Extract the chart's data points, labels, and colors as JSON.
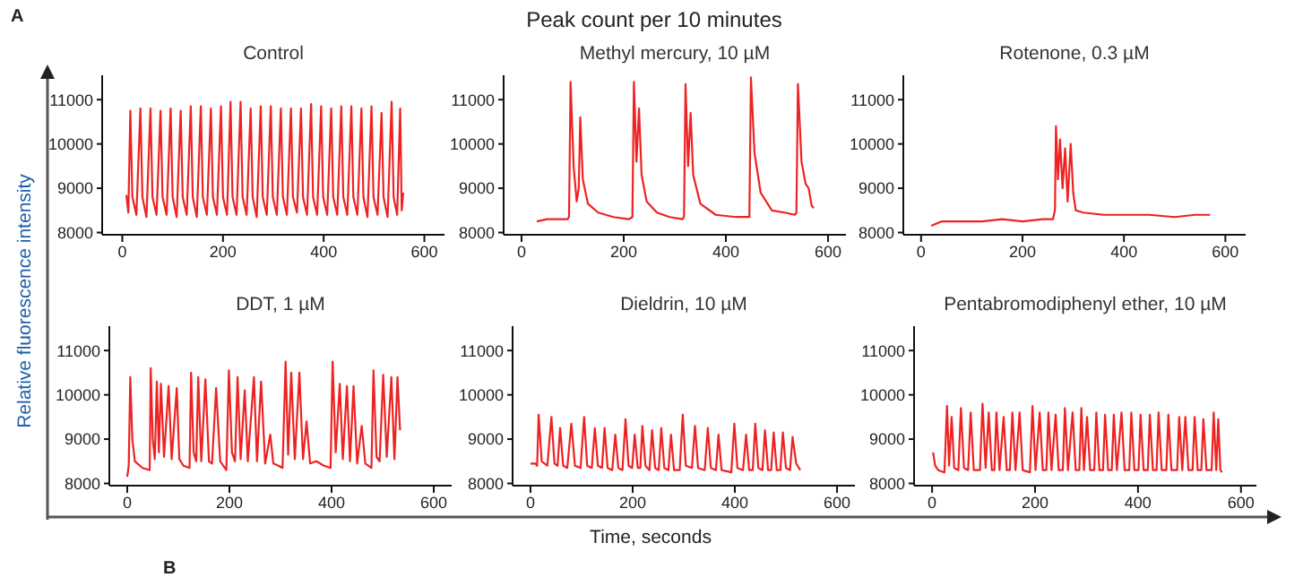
{
  "chart_data": [
    {
      "type": "line",
      "title": "Control",
      "ylabel": "Relative fluorescence intensity",
      "annotations": [
        "A",
        "Peak count per 10 minutes",
        "B"
      ],
      "color": "#ee2222",
      "xlim": [
        -40,
        640
      ],
      "ylim": [
        7950,
        11550
      ],
      "xticks": [
        0,
        200,
        400,
        600
      ],
      "yticks": [
        8000,
        9000,
        10000,
        11000
      ],
      "x": [
        8,
        12,
        16,
        20,
        28,
        36,
        40,
        48,
        56,
        60,
        68,
        76,
        80,
        88,
        96,
        100,
        108,
        116,
        120,
        128,
        136,
        140,
        148,
        156,
        160,
        168,
        176,
        180,
        188,
        196,
        200,
        208,
        215,
        219,
        227,
        235,
        239,
        247,
        255,
        259,
        267,
        275,
        279,
        287,
        295,
        299,
        307,
        315,
        319,
        327,
        335,
        339,
        347,
        355,
        359,
        367,
        375,
        379,
        387,
        395,
        399,
        407,
        415,
        419,
        427,
        435,
        439,
        447,
        455,
        459,
        467,
        475,
        479,
        487,
        495,
        499,
        507,
        515,
        519,
        527,
        535,
        539,
        546,
        552,
        555,
        558
      ],
      "values": [
        8850,
        8450,
        10750,
        8800,
        8400,
        10800,
        8800,
        8350,
        10800,
        8800,
        8400,
        10750,
        8800,
        8400,
        10800,
        8800,
        8350,
        10750,
        8800,
        8400,
        10850,
        8800,
        8350,
        10850,
        8800,
        8400,
        10800,
        8800,
        8400,
        10850,
        8800,
        8400,
        10950,
        8800,
        8400,
        10950,
        8800,
        8400,
        10800,
        8800,
        8350,
        10850,
        8800,
        8400,
        10850,
        8800,
        8400,
        10800,
        8800,
        8400,
        10800,
        8800,
        8450,
        10800,
        8800,
        8400,
        10900,
        8800,
        8400,
        10850,
        8800,
        8400,
        10800,
        8800,
        8400,
        10850,
        8800,
        8400,
        10850,
        8800,
        8400,
        10800,
        8800,
        8350,
        10850,
        8800,
        8400,
        10700,
        8800,
        8350,
        10950,
        8800,
        8400,
        10800,
        8500,
        8900
      ]
    },
    {
      "type": "line",
      "title": "Methyl mercury, 10 µM",
      "color": "#ee2222",
      "xlim": [
        -35,
        635
      ],
      "ylim": [
        7950,
        11550
      ],
      "xticks": [
        0,
        200,
        400,
        600
      ],
      "yticks": [
        8000,
        9000,
        10000,
        11000
      ],
      "x": [
        30,
        50,
        70,
        90,
        93,
        96,
        102,
        108,
        112,
        115,
        120,
        130,
        150,
        180,
        210,
        217,
        220,
        225,
        230,
        235,
        245,
        265,
        290,
        315,
        318,
        321,
        326,
        331,
        336,
        350,
        380,
        420,
        446,
        449,
        456,
        468,
        490,
        515,
        535,
        538,
        541,
        548,
        556,
        562,
        568,
        572
      ],
      "values": [
        8250,
        8300,
        8300,
        8300,
        8350,
        11400,
        9500,
        8700,
        9000,
        10600,
        9200,
        8650,
        8450,
        8350,
        8300,
        8350,
        11400,
        9600,
        10800,
        9300,
        8700,
        8450,
        8350,
        8300,
        8350,
        11350,
        9500,
        10700,
        9300,
        8650,
        8400,
        8350,
        8350,
        11500,
        9800,
        8900,
        8500,
        8450,
        8400,
        8450,
        11350,
        9600,
        9100,
        9000,
        8600,
        8550
      ]
    },
    {
      "type": "line",
      "title": "Rotenone, 0.3 µM",
      "color": "#ee2222",
      "xlim": [
        -35,
        640
      ],
      "ylim": [
        7950,
        11550
      ],
      "xticks": [
        0,
        200,
        400,
        600
      ],
      "yticks": [
        8000,
        9000,
        10000,
        11000
      ],
      "x": [
        20,
        40,
        80,
        120,
        160,
        200,
        240,
        260,
        264,
        266,
        270,
        274,
        279,
        284,
        289,
        295,
        300,
        305,
        320,
        360,
        400,
        450,
        500,
        540,
        570
      ],
      "values": [
        8150,
        8250,
        8250,
        8250,
        8300,
        8250,
        8300,
        8300,
        8500,
        10400,
        9200,
        10100,
        9000,
        9900,
        8700,
        10000,
        8900,
        8500,
        8450,
        8400,
        8400,
        8400,
        8350,
        8400,
        8400
      ]
    },
    {
      "type": "line",
      "title": "DDT, 1 µM",
      "color": "#ee2222",
      "xlim": [
        -35,
        635
      ],
      "ylim": [
        7950,
        11550
      ],
      "xticks": [
        0,
        200,
        400,
        600
      ],
      "yticks": [
        8000,
        9000,
        10000,
        11000
      ],
      "x": [
        0,
        3,
        6,
        10,
        15,
        30,
        44,
        46,
        50,
        54,
        58,
        62,
        66,
        72,
        81,
        87,
        97,
        102,
        110,
        122,
        125,
        130,
        135,
        139,
        145,
        153,
        160,
        166,
        174,
        182,
        194,
        199,
        205,
        211,
        216,
        222,
        230,
        236,
        248,
        254,
        262,
        270,
        280,
        286,
        296,
        304,
        310,
        315,
        321,
        328,
        337,
        344,
        351,
        358,
        370,
        385,
        398,
        402,
        408,
        416,
        422,
        430,
        436,
        443,
        450,
        459,
        466,
        478,
        482,
        488,
        494,
        501,
        508,
        517,
        523,
        529,
        534
      ],
      "values": [
        8150,
        8400,
        10400,
        9000,
        8500,
        8350,
        8300,
        10600,
        9000,
        8550,
        10300,
        8700,
        10250,
        8600,
        10200,
        8550,
        10150,
        8550,
        8400,
        8350,
        10500,
        8700,
        8500,
        10400,
        8500,
        10350,
        8500,
        8450,
        10150,
        8500,
        8300,
        10550,
        8700,
        8500,
        10400,
        8550,
        10100,
        8500,
        10400,
        8500,
        10300,
        8450,
        9100,
        8450,
        8400,
        8350,
        10750,
        8650,
        10500,
        8550,
        10500,
        8550,
        9400,
        8450,
        8500,
        8400,
        8350,
        10750,
        8700,
        10250,
        8550,
        10200,
        8500,
        10200,
        8450,
        9300,
        8450,
        8350,
        10550,
        8600,
        8500,
        10450,
        8600,
        10400,
        8550,
        10400,
        9200
      ]
    },
    {
      "type": "line",
      "title": "Dieldrin, 10 µM",
      "xlabel": "Time, seconds",
      "color": "#ee2222",
      "xlim": [
        -35,
        635
      ],
      "ylim": [
        7950,
        11550
      ],
      "xticks": [
        0,
        200,
        400,
        600
      ],
      "yticks": [
        8000,
        9000,
        10000,
        11000
      ],
      "x": [
        0,
        10,
        13,
        16,
        22,
        33,
        41,
        47,
        53,
        58,
        64,
        72,
        80,
        87,
        98,
        105,
        111,
        120,
        126,
        132,
        140,
        145,
        151,
        160,
        166,
        172,
        180,
        186,
        192,
        199,
        204,
        210,
        215,
        219,
        225,
        233,
        238,
        244,
        251,
        256,
        262,
        270,
        275,
        281,
        292,
        298,
        304,
        316,
        322,
        328,
        341,
        347,
        353,
        363,
        368,
        374,
        393,
        399,
        405,
        416,
        422,
        428,
        435,
        440,
        446,
        454,
        459,
        465,
        471,
        476,
        482,
        489,
        494,
        500,
        508,
        513,
        520,
        528
      ],
      "values": [
        8450,
        8450,
        8400,
        9550,
        8500,
        8400,
        9500,
        8450,
        8400,
        9250,
        8400,
        8350,
        9350,
        8400,
        8350,
        9500,
        8400,
        8350,
        9250,
        8400,
        8350,
        9250,
        8350,
        8300,
        9100,
        8350,
        8300,
        9450,
        8400,
        8350,
        9100,
        8350,
        8350,
        9300,
        8400,
        8300,
        9200,
        8350,
        8300,
        9250,
        8350,
        8300,
        9100,
        8300,
        8300,
        9550,
        8400,
        8350,
        9300,
        8350,
        8300,
        9250,
        8350,
        8300,
        9100,
        8300,
        8250,
        9350,
        8350,
        8300,
        9100,
        8300,
        8300,
        9350,
        8350,
        8300,
        9200,
        8300,
        8300,
        9150,
        8300,
        8300,
        9150,
        8350,
        8300,
        9050,
        8450,
        8300
      ]
    },
    {
      "type": "line",
      "title": "Pentabromodiphenyl ether, 10 µM",
      "color": "#ee2222",
      "xlim": [
        -35,
        630
      ],
      "ylim": [
        7950,
        11550
      ],
      "xticks": [
        0,
        200,
        400,
        600
      ],
      "yticks": [
        8000,
        9000,
        10000,
        11000
      ],
      "x": [
        2,
        6,
        12,
        24,
        29,
        33,
        38,
        43,
        51,
        56,
        62,
        70,
        75,
        81,
        93,
        98,
        104,
        110,
        116,
        121,
        125,
        131,
        139,
        145,
        151,
        156,
        162,
        170,
        176,
        190,
        195,
        201,
        209,
        215,
        222,
        226,
        232,
        240,
        246,
        254,
        258,
        264,
        273,
        279,
        286,
        290,
        295,
        301,
        307,
        315,
        319,
        325,
        332,
        336,
        342,
        349,
        353,
        359,
        368,
        374,
        383,
        387,
        393,
        401,
        405,
        411,
        419,
        423,
        429,
        436,
        440,
        446,
        455,
        459,
        465,
        476,
        480,
        486,
        492,
        498,
        506,
        510,
        516,
        523,
        527,
        533,
        543,
        547,
        552,
        556,
        560,
        563
      ],
      "values": [
        8700,
        8400,
        8300,
        8250,
        9750,
        8400,
        9500,
        8350,
        8300,
        9700,
        8350,
        8300,
        9600,
        8300,
        8300,
        9800,
        8350,
        9600,
        8300,
        8300,
        9600,
        8300,
        9500,
        8300,
        8300,
        9600,
        8300,
        9600,
        8300,
        8250,
        9750,
        8300,
        9600,
        8300,
        8300,
        9600,
        8300,
        9550,
        8300,
        8300,
        9700,
        8300,
        9600,
        8300,
        8300,
        9700,
        8300,
        9500,
        8300,
        8300,
        9600,
        8300,
        8300,
        9550,
        8300,
        8300,
        9550,
        8300,
        9600,
        8300,
        8300,
        9600,
        8300,
        8300,
        9550,
        8300,
        8300,
        9550,
        8300,
        8300,
        9600,
        8300,
        8300,
        9550,
        8300,
        8300,
        9500,
        8300,
        9500,
        8300,
        8300,
        9500,
        8300,
        8300,
        9450,
        8300,
        8300,
        9600,
        8300,
        9450,
        8300,
        8250
      ]
    }
  ]
}
